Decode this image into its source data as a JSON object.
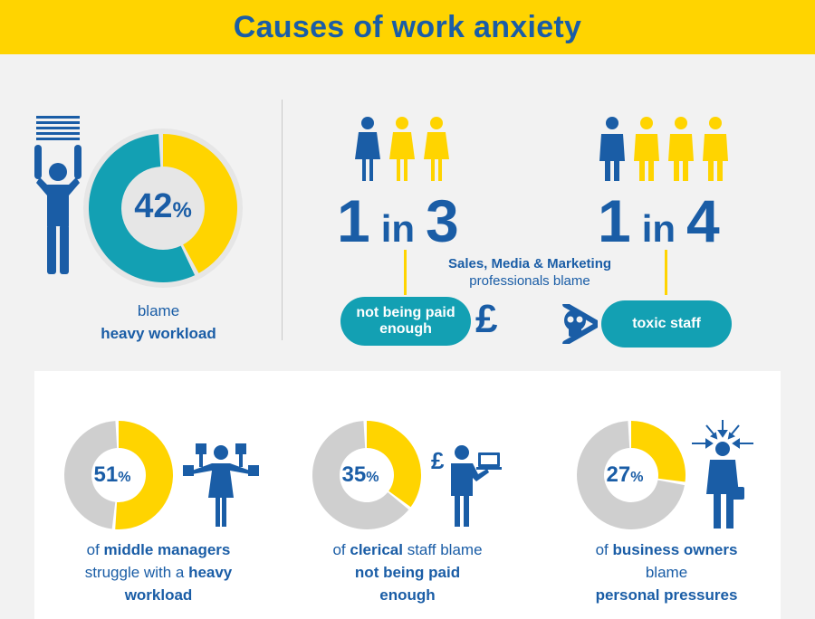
{
  "title": "Causes of work anxiety",
  "top_left": {
    "percent": "42",
    "percent_symbol": "%",
    "value_fraction": 0.42,
    "caption_line1": "blame",
    "caption_line2": "heavy workload"
  },
  "ratio_one": {
    "num": "1",
    "in": "in",
    "den": "3",
    "pill": "not being paid enough",
    "icon_char": "£"
  },
  "ratio_two": {
    "num": "1",
    "in": "in",
    "den": "4",
    "pill": "toxic staff"
  },
  "middle_caption": {
    "bold": "Sales, Media & Marketing",
    "rest": "professionals blame"
  },
  "bottom": [
    {
      "percent": "51",
      "percent_symbol": "%",
      "value_fraction": 0.51,
      "pre": "of ",
      "bold1": "middle managers",
      "line2": "struggle with a ",
      "bold2": "heavy",
      "bold3": "workload"
    },
    {
      "percent": "35",
      "percent_symbol": "%",
      "value_fraction": 0.35,
      "pre": "of ",
      "bold1": "clerical",
      "mid": " staff blame",
      "bold2": "not being paid",
      "bold3": "enough"
    },
    {
      "percent": "27",
      "percent_symbol": "%",
      "value_fraction": 0.27,
      "pre": "of ",
      "bold1": "business owners",
      "line2": "blame",
      "bold2": "personal pressures"
    }
  ],
  "colors": {
    "yellow": "#ffd400",
    "blue": "#1a5da6",
    "teal": "#13a0b3",
    "grey": "#cfcfcf",
    "bg": "#f2f2f2"
  },
  "icons": [
    "papers-icon",
    "person-arms-up-icon",
    "woman-icon",
    "man-icon",
    "pound-icon",
    "skull-crossbones-icon",
    "multitasking-woman-icon",
    "laptop-man-icon",
    "stressed-man-icon"
  ]
}
